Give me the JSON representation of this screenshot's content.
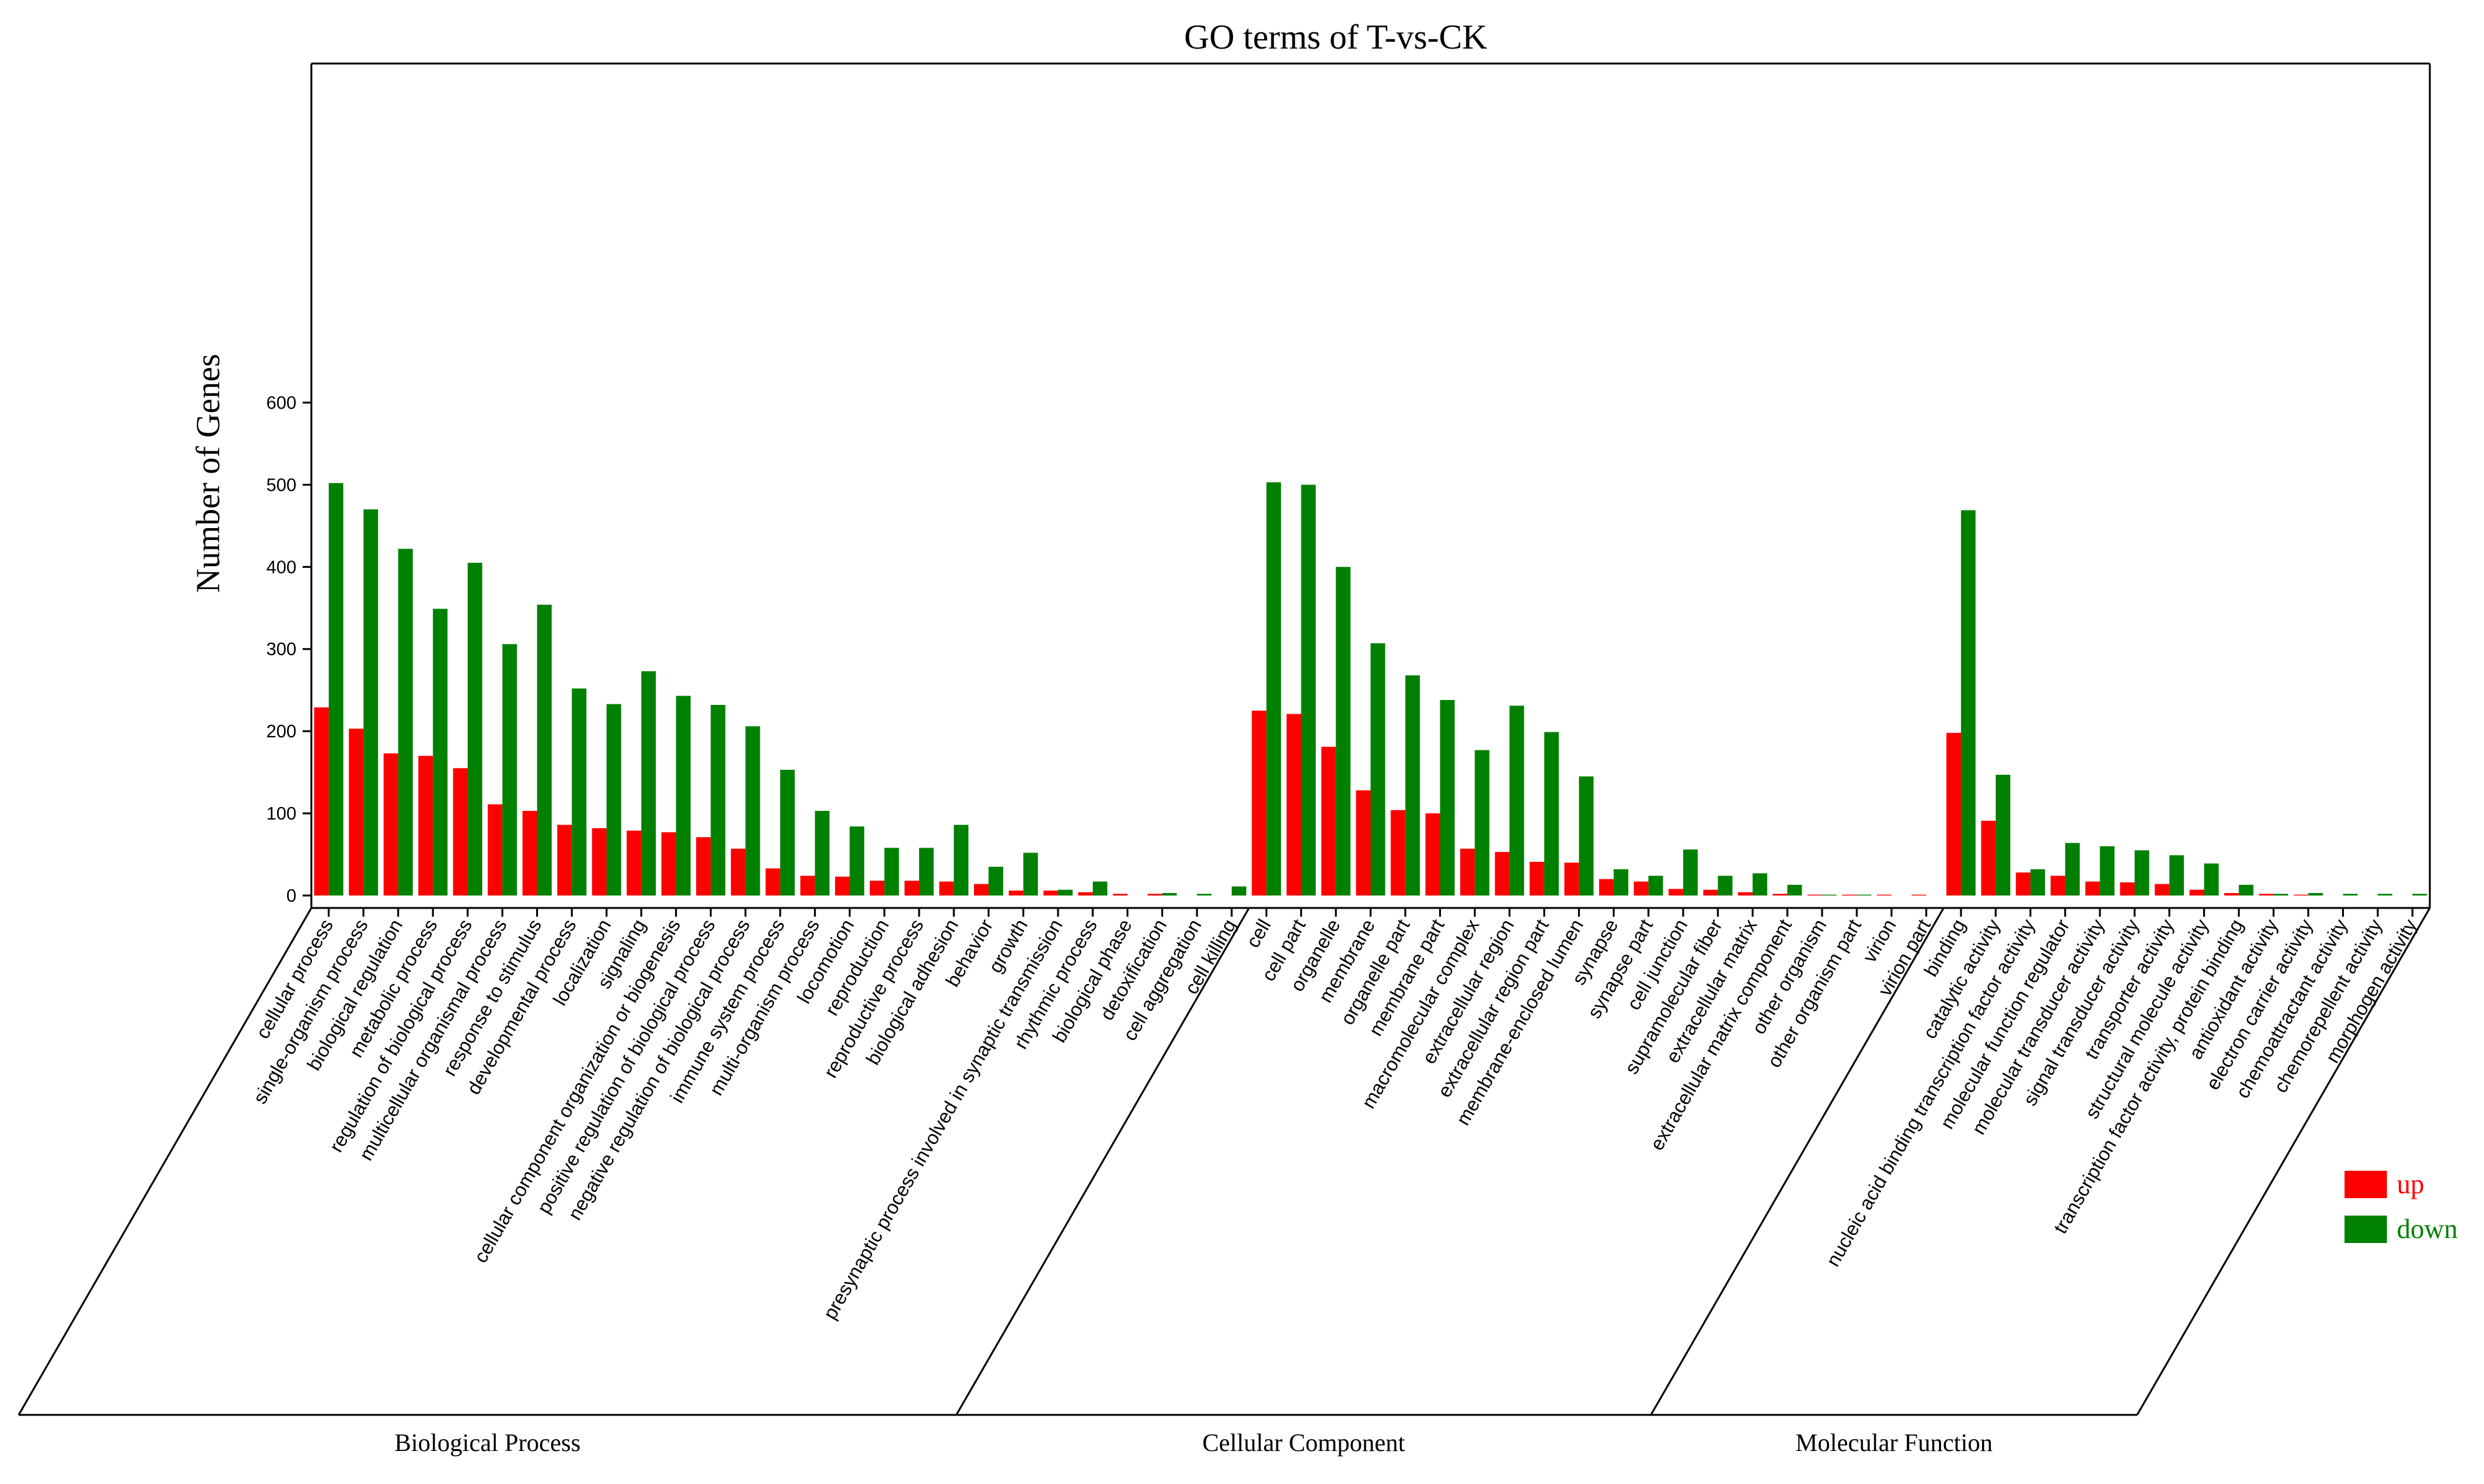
{
  "chart_data": {
    "type": "bar",
    "title": "GO terms of T-vs-CK",
    "ylabel": "Number of Genes",
    "xlabel": "",
    "ylim": [
      0,
      600
    ],
    "yticks": [
      0,
      100,
      200,
      300,
      400,
      500,
      600
    ],
    "grid": false,
    "legend_position": "bottom-right",
    "categories": [
      "cellular process",
      "single-organism process",
      "biological regulation",
      "metabolic process",
      "regulation of biological process",
      "multicellular organismal process",
      "response to stimulus",
      "developmental process",
      "localization",
      "signaling",
      "cellular component organization or biogenesis",
      "positive regulation of biological process",
      "negative regulation of biological process",
      "immune system process",
      "multi-organism process",
      "locomotion",
      "reproduction",
      "reproductive process",
      "biological adhesion",
      "behavior",
      "growth",
      "presynaptic process involved in synaptic transmission",
      "rhythmic process",
      "biological phase",
      "detoxification",
      "cell aggregation",
      "cell killing",
      "cell",
      "cell part",
      "organelle",
      "membrane",
      "organelle part",
      "membrane part",
      "macromolecular complex",
      "extracellular region",
      "extracellular region part",
      "membrane-enclosed lumen",
      "synapse",
      "synapse part",
      "cell junction",
      "supramolecular fiber",
      "extracellular matrix",
      "extracellular matrix component",
      "other organism",
      "other organism part",
      "virion",
      "virion part",
      "binding",
      "catalytic activity",
      "nucleic acid binding transcription factor activity",
      "molecular function regulator",
      "molecular transducer activity",
      "signal transducer activity",
      "transporter activity",
      "structural molecule activity",
      "transcription factor activity, protein binding",
      "antioxidant activity",
      "electron carrier activity",
      "chemoattractant activity",
      "chemorepellent activity",
      "morphogen activity"
    ],
    "series": [
      {
        "name": "up",
        "color": "#ff0000",
        "values": [
          229,
          203,
          173,
          170,
          155,
          111,
          103,
          86,
          82,
          79,
          77,
          71,
          57,
          33,
          24,
          23,
          18,
          18,
          17,
          14,
          6,
          6,
          4,
          2,
          2,
          0,
          0,
          225,
          221,
          181,
          128,
          104,
          100,
          57,
          53,
          41,
          40,
          20,
          17,
          8,
          7,
          4,
          2,
          1,
          1,
          1,
          1,
          198,
          91,
          28,
          24,
          17,
          16,
          14,
          7,
          3,
          2,
          1,
          0,
          0,
          0
        ]
      },
      {
        "name": "down",
        "color": "#008000",
        "values": [
          502,
          470,
          422,
          349,
          405,
          306,
          354,
          252,
          233,
          273,
          243,
          232,
          206,
          153,
          103,
          84,
          58,
          58,
          86,
          35,
          52,
          7,
          17,
          0,
          3,
          2,
          11,
          503,
          500,
          400,
          307,
          268,
          238,
          177,
          231,
          199,
          145,
          32,
          24,
          56,
          24,
          27,
          13,
          1,
          1,
          0,
          0,
          469,
          147,
          32,
          64,
          60,
          55,
          49,
          39,
          13,
          2,
          3,
          2,
          2,
          2
        ]
      }
    ],
    "groups": [
      {
        "name": "Biological Process",
        "start": 0,
        "end": 26
      },
      {
        "name": "Cellular Component",
        "start": 27,
        "end": 46
      },
      {
        "name": "Molecular Function",
        "start": 47,
        "end": 60
      }
    ]
  }
}
